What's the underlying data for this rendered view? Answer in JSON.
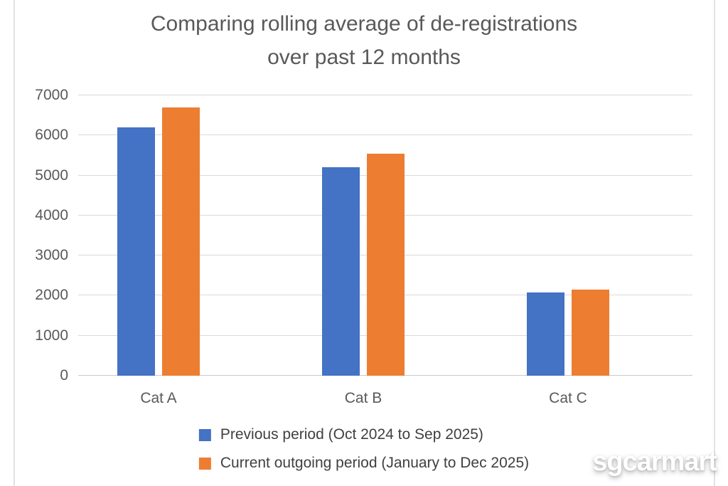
{
  "page": {
    "watermark": "sgcarmart"
  },
  "chart_data": {
    "type": "bar",
    "title": "Comparing rolling average of de-registrations over past 12 months",
    "title_lines": [
      "Comparing rolling average of de-registrations",
      "over past 12 months"
    ],
    "categories": [
      "Cat A",
      "Cat B",
      "Cat C"
    ],
    "series": [
      {
        "name": "Previous period (Oct 2024 to Sep 2025)",
        "color": "#4472C4",
        "values": [
          6200,
          5200,
          2080
        ]
      },
      {
        "name": "Current outgoing period (January to Dec 2025)",
        "color": "#ED7D31",
        "values": [
          6700,
          5550,
          2150
        ]
      }
    ],
    "xlabel": "",
    "ylabel": "",
    "ylim": [
      0,
      7000
    ],
    "yticks": [
      0,
      1000,
      2000,
      3000,
      4000,
      5000,
      6000,
      7000
    ],
    "grid": true,
    "legend_position": "bottom"
  },
  "colors": {
    "title_text": "#595959",
    "axis_text": "#595959",
    "gridline": "#D9D9D9",
    "frame_line": "#E2E2E2",
    "background": "#FFFFFF"
  }
}
